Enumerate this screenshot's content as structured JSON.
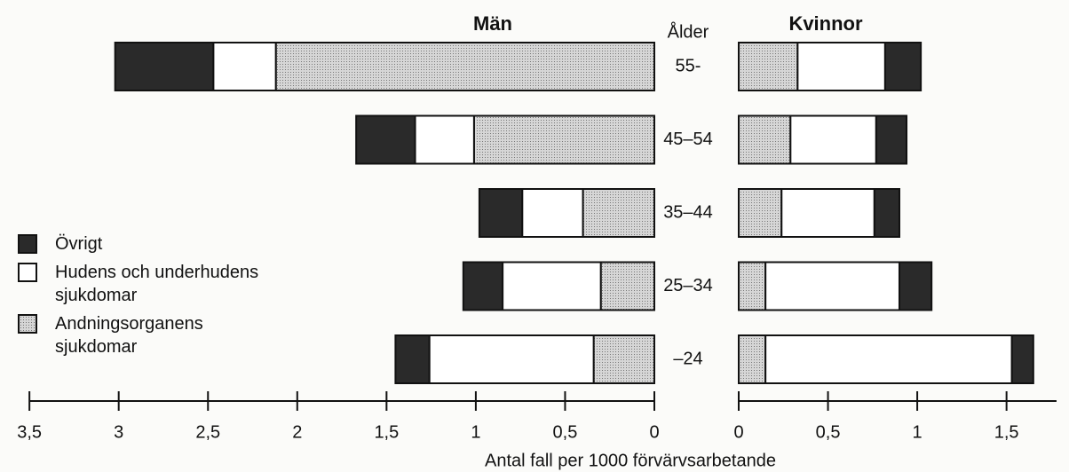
{
  "chart_data": {
    "type": "bar",
    "orientation": "horizontal",
    "panel_titles": [
      "Män",
      "Kvinnor"
    ],
    "category_label": "Ålder",
    "xlabel": "Antal fall per 1000 förvärvsarbetande",
    "categories": [
      "55-",
      "45–54",
      "35–44",
      "25–34",
      "–24"
    ],
    "series": [
      {
        "name": "Övrigt",
        "color": "#2a2a2a",
        "values_men": [
          0.55,
          0.33,
          0.24,
          0.22,
          0.19
        ],
        "values_women": [
          0.2,
          0.17,
          0.14,
          0.18,
          0.12
        ]
      },
      {
        "name": "Hudens och underhudens sjukdomar",
        "color": "#ffffff",
        "values_men": [
          0.35,
          0.33,
          0.34,
          0.55,
          0.92
        ],
        "values_women": [
          0.49,
          0.48,
          0.52,
          0.75,
          1.38
        ]
      },
      {
        "name": "Andningsorganens sjukdomar",
        "color": "#c8c8c8",
        "values_men": [
          2.12,
          1.01,
          0.4,
          0.3,
          0.34
        ],
        "values_women": [
          0.33,
          0.29,
          0.24,
          0.15,
          0.15
        ]
      }
    ],
    "xlim_men": [
      0,
      3.5
    ],
    "xticks_men": [
      0,
      {
        "value": 0.5,
        "label": "0,5"
      },
      1,
      {
        "value": 1.5,
        "label": "1,5"
      },
      2,
      {
        "value": 2.5,
        "label": "2,5"
      },
      3,
      {
        "value": 3.5,
        "label": "3,5"
      }
    ],
    "xlim_women": [
      0,
      1.78
    ],
    "xticks_women": [
      0,
      {
        "value": 0.5,
        "label": "0,5"
      },
      1,
      {
        "value": 1.5,
        "label": "1,5"
      }
    ]
  }
}
